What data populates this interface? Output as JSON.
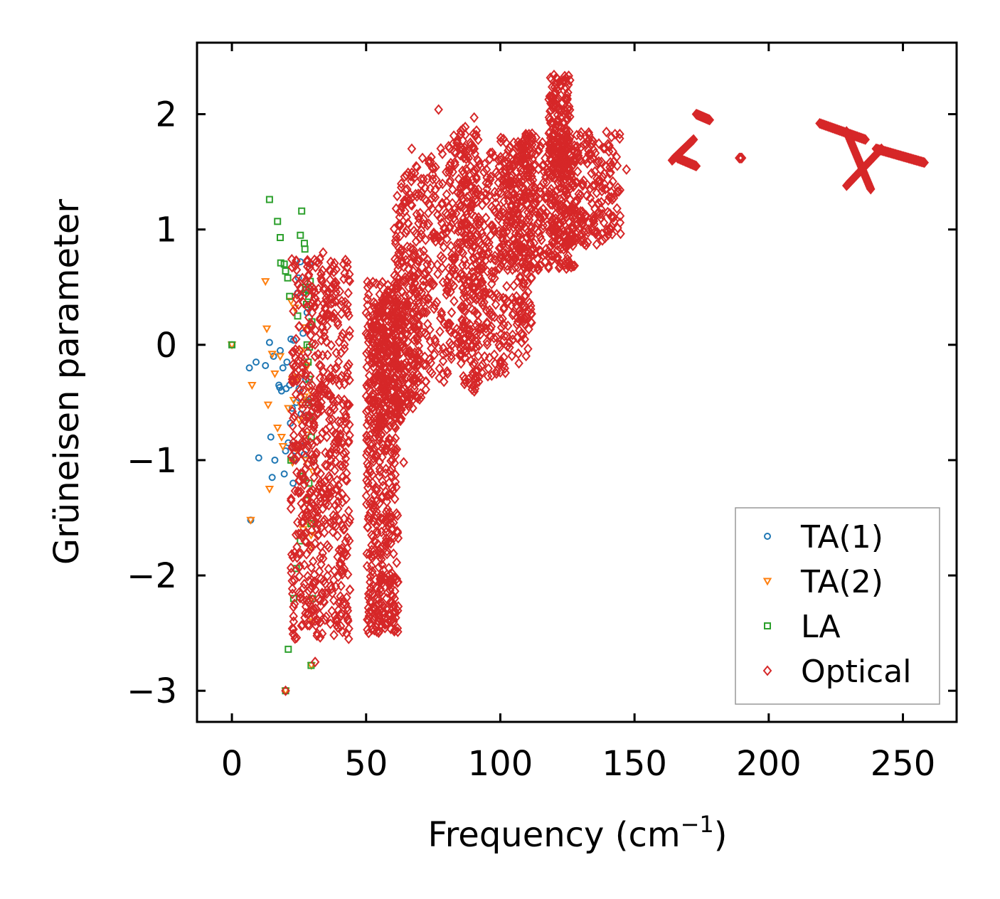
{
  "chart_data": {
    "type": "scatter",
    "title": "",
    "xlabel": "Frequency (cm",
    "xlabel_superscript": "−1",
    "xlabel_suffix": ")",
    "ylabel": "Grüneisen parameter",
    "xlim": [
      -13,
      270
    ],
    "ylim": [
      -3.27,
      2.62
    ],
    "xticks": [
      0,
      50,
      100,
      150,
      200,
      250
    ],
    "xtick_labels": [
      "0",
      "50",
      "100",
      "150",
      "200",
      "250"
    ],
    "yticks": [
      -3,
      -2,
      -1,
      0,
      1,
      2
    ],
    "ytick_labels": [
      "−3",
      "−2",
      "−1",
      "0",
      "1",
      "2"
    ],
    "grid": false,
    "legend_position": "lower-right",
    "series": [
      {
        "name": "TA(1)",
        "marker": "circle",
        "color": "#1f77b4",
        "points": [
          [
            0,
            0.0
          ],
          [
            7,
            -1.52
          ],
          [
            6.5,
            -0.2
          ],
          [
            9,
            -0.15
          ],
          [
            10,
            -0.98
          ],
          [
            12.5,
            -0.18
          ],
          [
            14,
            0.02
          ],
          [
            14.5,
            -0.8
          ],
          [
            15.5,
            -0.1
          ],
          [
            15,
            -1.15
          ],
          [
            16,
            -1.0
          ],
          [
            17.5,
            -0.35
          ],
          [
            18,
            -0.05
          ],
          [
            18.5,
            -0.4
          ],
          [
            19,
            -0.2
          ],
          [
            19.5,
            -1.12
          ],
          [
            20,
            -0.92
          ],
          [
            20.5,
            -0.15
          ],
          [
            21,
            -0.85
          ],
          [
            21.5,
            -0.35
          ],
          [
            22,
            0.05
          ],
          [
            22.5,
            -0.55
          ],
          [
            23,
            0.04
          ],
          [
            23.5,
            -0.92
          ],
          [
            24,
            -0.5
          ],
          [
            24.5,
            0.45
          ],
          [
            25,
            -0.38
          ],
          [
            25.5,
            0.72
          ],
          [
            26,
            -0.88
          ],
          [
            26.5,
            0.1
          ],
          [
            27,
            -0.95
          ],
          [
            27.5,
            -0.3
          ],
          [
            28,
            0.28
          ],
          [
            28.5,
            0.5
          ],
          [
            29,
            0.7
          ],
          [
            22.8,
            -1.2
          ],
          [
            23.2,
            -1.0
          ],
          [
            25.8,
            -0.6
          ],
          [
            26.8,
            0.45
          ],
          [
            24.8,
            0.58
          ],
          [
            27.8,
            -0.48
          ],
          [
            21.8,
            -0.68
          ],
          [
            20.2,
            -0.38
          ],
          [
            17.8,
            -0.37
          ]
        ]
      },
      {
        "name": "TA(2)",
        "marker": "triangle-down",
        "color": "#ff7f0e",
        "points": [
          [
            0,
            0.0
          ],
          [
            7,
            -1.52
          ],
          [
            7.5,
            -0.35
          ],
          [
            12.5,
            0.55
          ],
          [
            13,
            0.14
          ],
          [
            13.5,
            -0.52
          ],
          [
            14,
            -1.25
          ],
          [
            15,
            -0.08
          ],
          [
            16,
            -0.25
          ],
          [
            17,
            -0.72
          ],
          [
            18,
            -0.1
          ],
          [
            18.5,
            -0.8
          ],
          [
            19,
            -0.88
          ],
          [
            20,
            -3.0
          ],
          [
            21,
            -0.55
          ],
          [
            22,
            0.38
          ],
          [
            22.5,
            -0.3
          ],
          [
            23,
            -0.48
          ],
          [
            23.5,
            0.32
          ],
          [
            24,
            -0.9
          ],
          [
            24.5,
            -0.28
          ],
          [
            25,
            -0.65
          ],
          [
            26,
            -0.05
          ],
          [
            26.5,
            -1.6
          ],
          [
            27,
            -0.45
          ],
          [
            27.5,
            -1.0
          ],
          [
            28,
            -0.78
          ],
          [
            28.5,
            -1.55
          ],
          [
            29,
            -1.75
          ],
          [
            29.5,
            -1.65
          ],
          [
            30,
            -2.4
          ],
          [
            29.8,
            -2.2
          ],
          [
            29.2,
            -0.4
          ],
          [
            28.8,
            -1.32
          ],
          [
            30.2,
            -1.1
          ],
          [
            29.6,
            -2.78
          ],
          [
            22.6,
            -1.02
          ],
          [
            25.6,
            -0.52
          ],
          [
            27.2,
            0.15
          ],
          [
            28.2,
            -0.18
          ]
        ]
      },
      {
        "name": "LA",
        "marker": "square",
        "color": "#2ca02c",
        "points": [
          [
            0,
            0.0
          ],
          [
            14,
            1.26
          ],
          [
            17,
            1.07
          ],
          [
            18,
            0.93
          ],
          [
            18.2,
            0.71
          ],
          [
            19.5,
            0.7
          ],
          [
            20,
            0.64
          ],
          [
            20,
            -3.0
          ],
          [
            20.8,
            0.58
          ],
          [
            21,
            -2.64
          ],
          [
            21.5,
            0.42
          ],
          [
            22,
            -1.0
          ],
          [
            23,
            -2.2
          ],
          [
            24,
            -1.94
          ],
          [
            24.5,
            0.25
          ],
          [
            25.5,
            0.95
          ],
          [
            25.5,
            -1.7
          ],
          [
            26,
            1.16
          ],
          [
            26.5,
            -1.14
          ],
          [
            27,
            0.88
          ],
          [
            27.2,
            0.83
          ],
          [
            27.5,
            0.5
          ],
          [
            27.8,
            0.35
          ],
          [
            28,
            0.0
          ],
          [
            28.2,
            -1.35
          ],
          [
            28.5,
            -0.5
          ],
          [
            28.8,
            -0.3
          ],
          [
            29,
            -0.62
          ],
          [
            29.2,
            0.55
          ],
          [
            29.5,
            -2.78
          ],
          [
            29.5,
            -1.55
          ],
          [
            30,
            -2.2
          ],
          [
            30.5,
            -1.0
          ],
          [
            29.8,
            0.2
          ],
          [
            28.6,
            0.42
          ],
          [
            27.4,
            0.48
          ],
          [
            28.4,
            -0.15
          ],
          [
            29.6,
            -0.8
          ],
          [
            28.9,
            -0.02
          ],
          [
            28.7,
            -1.2
          ]
        ]
      },
      {
        "name": "Optical",
        "marker": "diamond",
        "color": "#d62728",
        "clusters": [
          {
            "x_range": [
              22,
              44
            ],
            "y_range": [
              -2.55,
              0.75
            ],
            "count": 650,
            "seed": 11,
            "slope": 0.0
          },
          {
            "x_range": [
              50,
              62
            ],
            "y_range": [
              -2.5,
              0.55
            ],
            "count": 520,
            "seed": 23,
            "slope": 0.0
          },
          {
            "x_range": [
              52,
              70
            ],
            "y_range": [
              -0.7,
              0.55
            ],
            "count": 260,
            "seed": 31,
            "slope": 0.02
          },
          {
            "x_range": [
              60,
              92
            ],
            "y_range": [
              -0.35,
              1.7
            ],
            "count": 520,
            "seed": 37,
            "slope": 0.02
          },
          {
            "x_range": [
              85,
              112
            ],
            "y_range": [
              -0.3,
              1.7
            ],
            "count": 460,
            "seed": 41,
            "slope": 0.015
          },
          {
            "x_range": [
              100,
              128
            ],
            "y_range": [
              0.65,
              1.8
            ],
            "count": 380,
            "seed": 47,
            "slope": 0.0
          },
          {
            "x_range": [
              118,
              126
            ],
            "y_range": [
              1.5,
              2.35
            ],
            "count": 160,
            "seed": 53,
            "slope": 0.0
          },
          {
            "x_range": [
              120,
              145
            ],
            "y_range": [
              0.85,
              1.85
            ],
            "count": 260,
            "seed": 59,
            "slope": 0.0
          }
        ],
        "tracks": [
          {
            "x": [
              164,
              172
            ],
            "y": [
              1.6,
              1.78
            ],
            "count": 30
          },
          {
            "x": [
              166,
              173
            ],
            "y": [
              1.62,
              1.55
            ],
            "count": 20
          },
          {
            "x": [
              173,
              178
            ],
            "y": [
              2.0,
              1.95
            ],
            "count": 30
          },
          {
            "x": [
              189,
              190
            ],
            "y": [
              1.62,
              1.62
            ],
            "count": 6
          },
          {
            "x": [
              219,
              236
            ],
            "y": [
              1.92,
              1.78
            ],
            "count": 40
          },
          {
            "x": [
              229,
              238
            ],
            "y": [
              1.85,
              1.35
            ],
            "count": 50
          },
          {
            "x": [
              229,
              242
            ],
            "y": [
              1.38,
              1.7
            ],
            "count": 40
          },
          {
            "x": [
              240,
              258
            ],
            "y": [
              1.7,
              1.58
            ],
            "count": 50
          }
        ],
        "points": [
          [
            77,
            2.04
          ],
          [
            120,
            2.34
          ],
          [
            124,
            2.33
          ],
          [
            31,
            -2.75
          ],
          [
            23,
            -2.4
          ],
          [
            20,
            -3.0
          ],
          [
            22,
            -1.42
          ],
          [
            25,
            -2.15
          ],
          [
            79,
            -0.32
          ],
          [
            90,
            1.83
          ],
          [
            84,
            1.75
          ],
          [
            67,
            1.7
          ],
          [
            71,
            1.62
          ],
          [
            115,
            1.72
          ],
          [
            130,
            0.9
          ],
          [
            108,
            0.7
          ],
          [
            96,
            0.3
          ],
          [
            64,
            -1.02
          ],
          [
            34,
            0.8
          ],
          [
            42,
            0.62
          ],
          [
            147,
            1.52
          ],
          [
            132,
            1.12
          ]
        ]
      }
    ]
  }
}
